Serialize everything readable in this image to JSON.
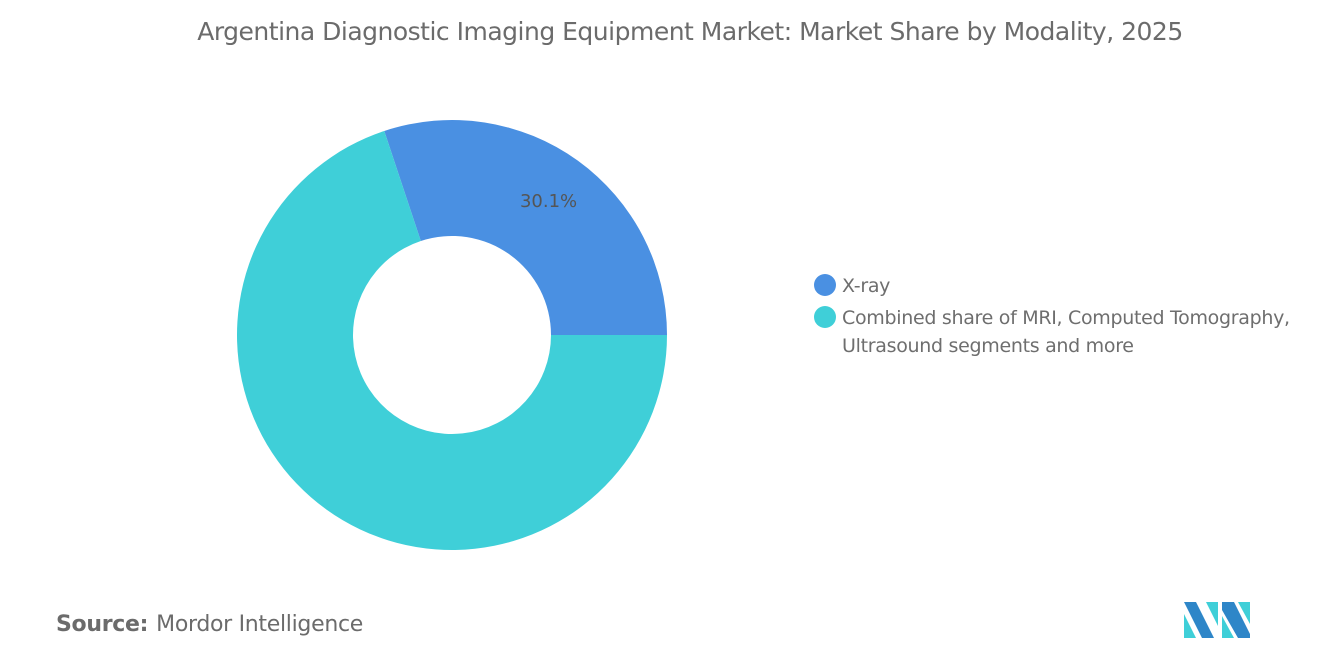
{
  "title": "Argentina Diagnostic Imaging Equipment Market: Market Share by Modality, 2025",
  "source_label": "Source:",
  "source_value": "Mordor Intelligence",
  "logo_text": "Mordor Intelligence",
  "chart_data": {
    "type": "pie",
    "donut": true,
    "title": "Argentina Diagnostic Imaging Equipment Market: Market Share by Modality, 2025",
    "legend_position": "right",
    "series": [
      {
        "name": "X-ray",
        "value": 30.1,
        "label": "30.1%",
        "color": "#4a90e2"
      },
      {
        "name": "Combined share of MRI, Computed Tomography, Ultrasound segments and more",
        "value": 69.9,
        "label": "",
        "color": "#3fcfd8"
      }
    ]
  }
}
